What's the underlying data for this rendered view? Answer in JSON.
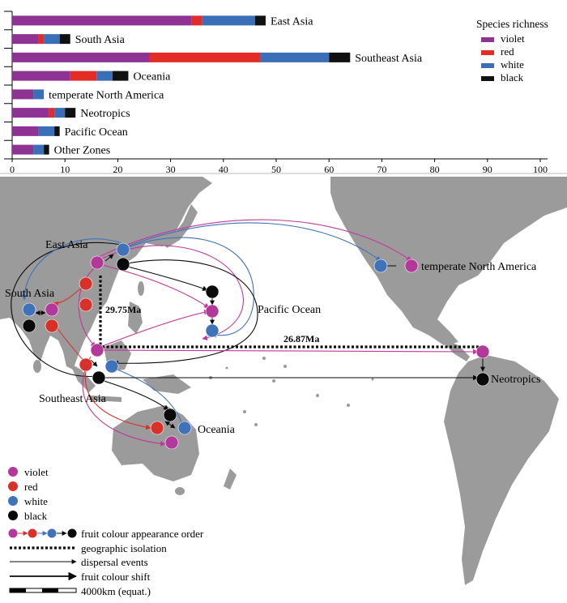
{
  "chart_data": [
    {
      "type": "bar",
      "stacked": true,
      "orientation": "horizontal",
      "categories": [
        "East Asia",
        "South Asia",
        "Southeast Asia",
        "Oceania",
        "temperate North America",
        "Neotropics",
        "Pacific Ocean",
        "Other Zones"
      ],
      "series": [
        {
          "name": "violet",
          "color": "#8e3394",
          "values": [
            34,
            5,
            26,
            11,
            4,
            7,
            5,
            4
          ]
        },
        {
          "name": "red",
          "color": "#e32c25",
          "values": [
            2,
            1,
            21,
            5,
            0,
            1,
            0,
            0
          ]
        },
        {
          "name": "white",
          "color": "#3a6fb7",
          "values": [
            10,
            3,
            13,
            3,
            2,
            2,
            3,
            2
          ]
        },
        {
          "name": "black",
          "color": "#111111",
          "values": [
            2,
            2,
            4,
            3,
            0,
            2,
            1,
            1
          ]
        }
      ],
      "xlim": [
        0,
        100
      ],
      "xticks": [
        "0",
        "10",
        "20",
        "30",
        "40",
        "50",
        "60",
        "70",
        "80",
        "90",
        "100"
      ],
      "legend_title": "Species richness",
      "legend_position": "top-right",
      "grid": false
    }
  ],
  "map": {
    "region_labels": {
      "east_asia": "East Asia",
      "south_asia": "South Asia",
      "southeast_asia": "Southeast Asia",
      "oceania": "Oceania",
      "pacific_ocean": "Pacific Ocean",
      "temperate_na": "temperate North America",
      "neotropics": "Neotropics"
    },
    "isolation_labels": {
      "vertical": "29.75Ma",
      "horizontal": "26.87Ma"
    },
    "colors": {
      "land": "#9b9b9b",
      "violet": "#b2399a",
      "red": "#d8312a",
      "white": "#3f72b9",
      "black": "#0a0a0a",
      "violet_arrow": "#c0389a",
      "red_arrow": "#d8312a",
      "white_arrow": "#3f72b9"
    },
    "legend": {
      "violet": "violet",
      "red": "red",
      "white": "white",
      "black": "black",
      "order": "fruit colour appearance order",
      "isolation": "geographic isolation",
      "dispersal": "dispersal events",
      "shift": "fruit colour shift",
      "scale": "4000km (equat.)"
    }
  }
}
